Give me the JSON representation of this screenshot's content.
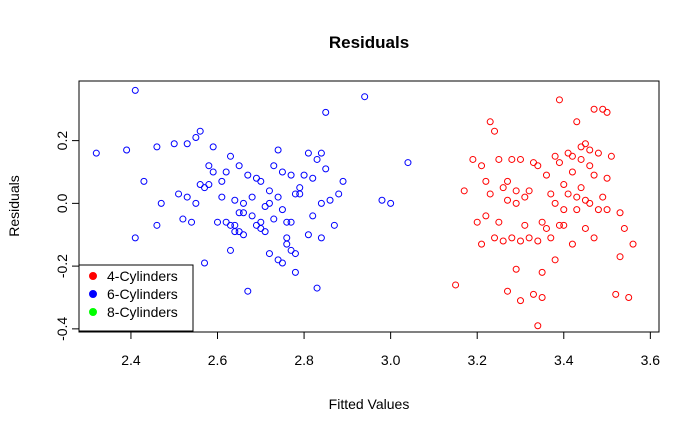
{
  "chart_data": {
    "type": "scatter",
    "title": "Residuals",
    "xlabel": "Fitted Values",
    "ylabel": "Residuals",
    "xlim": [
      2.28,
      3.62
    ],
    "ylim": [
      -0.41,
      0.39
    ],
    "x_ticks": [
      2.4,
      2.6,
      2.8,
      3.0,
      3.2,
      3.4,
      3.6
    ],
    "x_tick_labels": [
      "2.4",
      "2.6",
      "2.8",
      "3.0",
      "3.2",
      "3.4",
      "3.6"
    ],
    "y_ticks": [
      -0.4,
      -0.2,
      0.0,
      0.2
    ],
    "y_tick_labels": [
      "-0.4",
      "-0.2",
      "0.0",
      "0.2"
    ],
    "legend": {
      "position": "bottom-left",
      "entries": [
        {
          "label": "4-Cylinders",
          "color": "#ff0000"
        },
        {
          "label": "6-Cylinders",
          "color": "#0000ff"
        },
        {
          "label": "8-Cylinders",
          "color": "#00ff00"
        }
      ]
    },
    "series": [
      {
        "name": "6-Cylinders",
        "color": "#0000ff",
        "x": [
          2.32,
          2.39,
          2.41,
          2.41,
          2.43,
          2.46,
          2.46,
          2.47,
          2.5,
          2.51,
          2.52,
          2.53,
          2.53,
          2.54,
          2.55,
          2.55,
          2.56,
          2.56,
          2.57,
          2.57,
          2.58,
          2.58,
          2.59,
          2.59,
          2.6,
          2.61,
          2.61,
          2.62,
          2.62,
          2.63,
          2.63,
          2.63,
          2.64,
          2.64,
          2.64,
          2.65,
          2.65,
          2.65,
          2.66,
          2.66,
          2.66,
          2.67,
          2.67,
          2.68,
          2.68,
          2.69,
          2.69,
          2.7,
          2.7,
          2.7,
          2.71,
          2.71,
          2.72,
          2.72,
          2.72,
          2.73,
          2.73,
          2.74,
          2.74,
          2.74,
          2.75,
          2.75,
          2.75,
          2.76,
          2.76,
          2.76,
          2.77,
          2.77,
          2.77,
          2.78,
          2.78,
          2.78,
          2.79,
          2.79,
          2.8,
          2.81,
          2.81,
          2.82,
          2.82,
          2.83,
          2.83,
          2.84,
          2.84,
          2.84,
          2.85,
          2.85,
          2.86,
          2.87,
          2.88,
          2.89,
          2.94,
          2.98,
          3.0,
          3.04
        ],
        "y": [
          0.16,
          0.17,
          0.36,
          -0.11,
          0.07,
          0.18,
          -0.07,
          0.0,
          0.19,
          0.03,
          -0.05,
          0.02,
          0.19,
          -0.06,
          0.21,
          0.0,
          0.23,
          0.06,
          -0.19,
          0.05,
          0.12,
          0.06,
          0.1,
          0.18,
          -0.06,
          0.07,
          0.02,
          0.1,
          -0.06,
          0.15,
          -0.15,
          -0.07,
          0.01,
          -0.09,
          -0.07,
          0.12,
          -0.03,
          -0.09,
          0.0,
          -0.03,
          -0.1,
          0.09,
          -0.28,
          -0.04,
          0.02,
          0.08,
          -0.07,
          0.07,
          -0.06,
          -0.08,
          -0.01,
          -0.09,
          0.0,
          -0.16,
          0.04,
          0.12,
          -0.05,
          0.17,
          0.02,
          -0.18,
          -0.02,
          -0.19,
          0.1,
          -0.06,
          -0.11,
          -0.13,
          0.09,
          -0.06,
          -0.15,
          0.03,
          -0.16,
          -0.22,
          0.05,
          0.03,
          0.09,
          0.16,
          -0.1,
          0.08,
          -0.04,
          0.14,
          -0.27,
          0.0,
          -0.11,
          0.16,
          0.29,
          0.11,
          0.01,
          -0.07,
          0.03,
          0.07,
          0.34,
          0.01,
          0.0,
          0.13
        ]
      },
      {
        "name": "4-Cylinders",
        "color": "#ff0000",
        "x": [
          3.15,
          3.17,
          3.19,
          3.2,
          3.21,
          3.21,
          3.22,
          3.22,
          3.23,
          3.23,
          3.24,
          3.24,
          3.25,
          3.25,
          3.26,
          3.26,
          3.27,
          3.27,
          3.27,
          3.28,
          3.28,
          3.29,
          3.29,
          3.29,
          3.3,
          3.3,
          3.3,
          3.31,
          3.31,
          3.32,
          3.32,
          3.33,
          3.33,
          3.34,
          3.34,
          3.34,
          3.35,
          3.35,
          3.35,
          3.36,
          3.36,
          3.37,
          3.37,
          3.38,
          3.38,
          3.38,
          3.39,
          3.39,
          3.39,
          3.4,
          3.4,
          3.4,
          3.41,
          3.41,
          3.42,
          3.42,
          3.42,
          3.43,
          3.43,
          3.43,
          3.44,
          3.44,
          3.44,
          3.45,
          3.45,
          3.45,
          3.46,
          3.46,
          3.46,
          3.47,
          3.47,
          3.47,
          3.48,
          3.48,
          3.49,
          3.49,
          3.5,
          3.5,
          3.5,
          3.51,
          3.52,
          3.53,
          3.53,
          3.54,
          3.55,
          3.56
        ],
        "y": [
          -0.26,
          0.04,
          0.14,
          -0.06,
          0.12,
          -0.13,
          0.07,
          -0.04,
          0.26,
          0.03,
          -0.11,
          0.23,
          0.14,
          -0.06,
          0.05,
          -0.12,
          0.01,
          0.07,
          -0.28,
          0.14,
          -0.11,
          0.04,
          -0.21,
          0.0,
          -0.12,
          -0.31,
          0.14,
          0.02,
          -0.07,
          0.04,
          -0.11,
          0.13,
          -0.29,
          -0.39,
          0.12,
          -0.12,
          -0.06,
          -0.22,
          -0.3,
          0.09,
          -0.08,
          0.03,
          -0.11,
          0.15,
          -0.18,
          0.0,
          0.33,
          0.13,
          -0.07,
          -0.02,
          0.06,
          -0.07,
          0.16,
          0.03,
          0.15,
          0.1,
          -0.13,
          0.26,
          -0.02,
          0.02,
          0.18,
          0.14,
          0.05,
          0.19,
          -0.08,
          0.01,
          0.17,
          0.12,
          0.0,
          0.3,
          0.09,
          -0.11,
          0.16,
          -0.02,
          0.3,
          0.02,
          0.08,
          -0.02,
          0.29,
          0.15,
          -0.29,
          -0.17,
          -0.03,
          -0.08,
          -0.3,
          -0.13
        ]
      },
      {
        "name": "8-Cylinders",
        "color": "#00ff00",
        "x": [],
        "y": []
      }
    ]
  }
}
